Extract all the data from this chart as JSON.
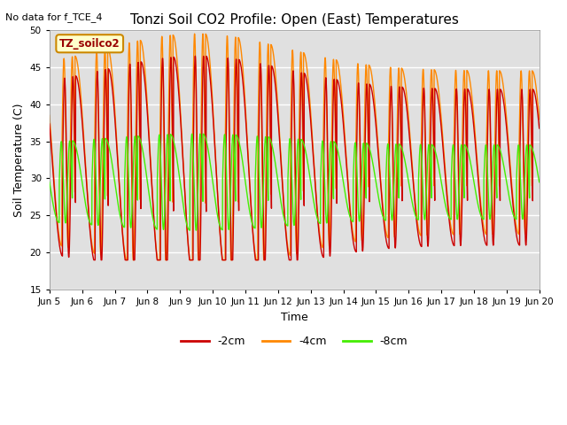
{
  "title": "Tonzi Soil CO2 Profile: Open (East) Temperatures",
  "no_data_text": "No data for f_TCE_4",
  "xlabel": "Time",
  "ylabel": "Soil Temperature (C)",
  "ylim": [
    15,
    50
  ],
  "yticks": [
    15,
    20,
    25,
    30,
    35,
    40,
    45,
    50
  ],
  "color_2cm": "#cc0000",
  "color_4cm": "#ff8800",
  "color_8cm": "#44ee00",
  "legend_label_2cm": "-2cm",
  "legend_label_4cm": "-4cm",
  "legend_label_8cm": "-8cm",
  "box_label": "TZ_soilco2",
  "bg_color": "#e0e0e0",
  "x_date_labels": [
    "Jun 5",
    "Jun 6",
    "Jun 7",
    "Jun 8",
    "Jun 9",
    "Jun 10",
    "Jun 11",
    "Jun 12",
    "Jun 13",
    "Jun 14",
    "Jun 15",
    "Jun 16",
    "Jun 17",
    "Jun 18",
    "Jun 19",
    "Jun 20"
  ],
  "line_width": 1.0
}
